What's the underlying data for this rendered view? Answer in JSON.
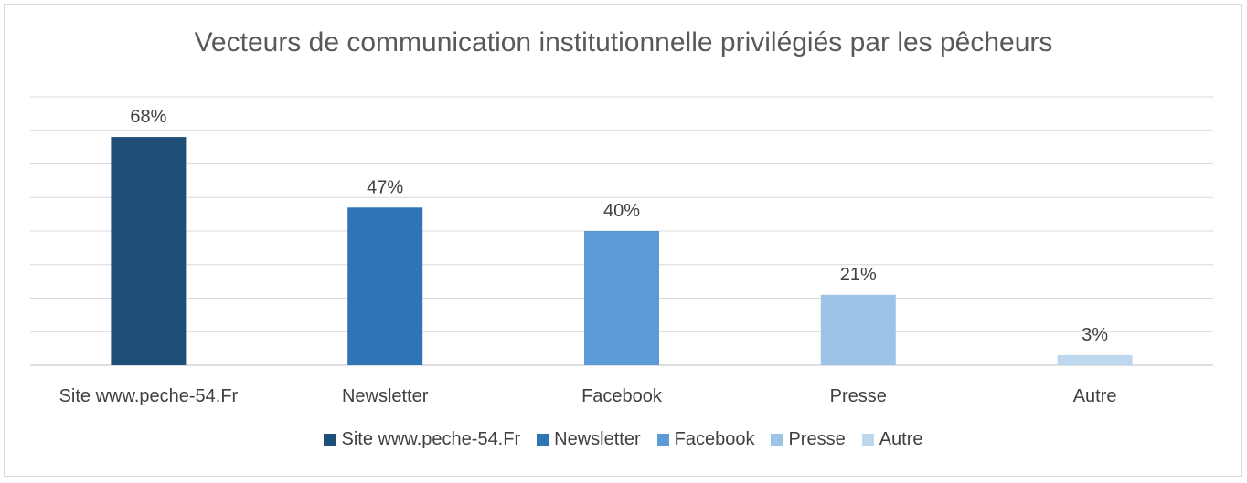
{
  "chart_data": {
    "type": "bar",
    "title": "Vecteurs de communication institutionnelle privilégiés par les pêcheurs",
    "categories": [
      "Site www.peche-54.Fr",
      "Newsletter",
      "Facebook",
      "Presse",
      "Autre"
    ],
    "values": [
      68,
      47,
      40,
      21,
      3
    ],
    "data_labels": [
      "68%",
      "47%",
      "40%",
      "21%",
      "3%"
    ],
    "colors": [
      "#1f4e79",
      "#2e75b6",
      "#5b9bd5",
      "#9dc3e6",
      "#bdd7ee"
    ],
    "ylim": [
      0,
      80
    ],
    "y_gridline_step": 10,
    "grid": true,
    "legend": "bottom",
    "xlabel": "",
    "ylabel": ""
  }
}
